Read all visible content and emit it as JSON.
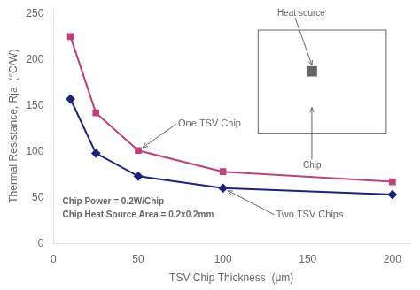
{
  "chart_data": {
    "type": "line",
    "x": [
      10,
      25,
      50,
      100,
      200
    ],
    "series": [
      {
        "name": "One TSV Chip",
        "color": "#C0407A",
        "marker": "square",
        "values": [
          225,
          142,
          101,
          78,
          67
        ]
      },
      {
        "name": "Two TSV Chips",
        "color": "#1A237E",
        "marker": "diamond",
        "values": [
          157,
          98,
          73,
          60,
          53
        ]
      }
    ],
    "xlabel": "TSV Chip Thickness  (μm)",
    "ylabel": "Thermal Resistance, Rja  (°C/W)",
    "xlim": [
      0,
      210
    ],
    "ylim": [
      0,
      255
    ],
    "xticks": [
      0,
      50,
      100,
      150,
      200
    ],
    "yticks": [
      0,
      50,
      100,
      150,
      200,
      250
    ],
    "grid": false,
    "annotations": [
      "Chip Power = 0.2W/Chip",
      "Chip Heat Source Area = 0.2x0.2mm",
      "Heat source",
      "Chip"
    ]
  }
}
